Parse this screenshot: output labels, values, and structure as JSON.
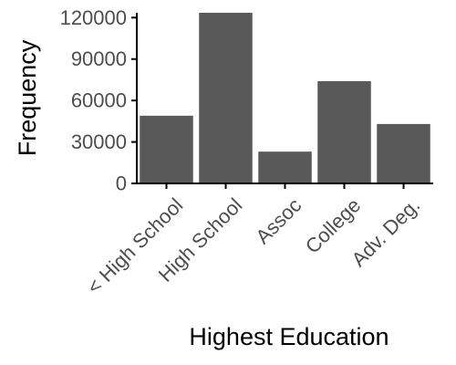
{
  "chart_data": {
    "type": "bar",
    "categories": [
      "< High School",
      "High School",
      "Assoc",
      "College",
      "Adv. Deg."
    ],
    "values": [
      49000,
      123500,
      23000,
      74000,
      43000
    ],
    "title": "",
    "xlabel": "Highest Education",
    "ylabel": "Frequency",
    "ylim": [
      0,
      123500
    ],
    "yticks": [
      0,
      30000,
      60000,
      90000,
      120000
    ],
    "grid": false,
    "legend": "none",
    "colors": {
      "bar": "#595959",
      "axis": "#000000",
      "tick_label": "#4d4d4d",
      "axis_title": "#000000"
    }
  }
}
